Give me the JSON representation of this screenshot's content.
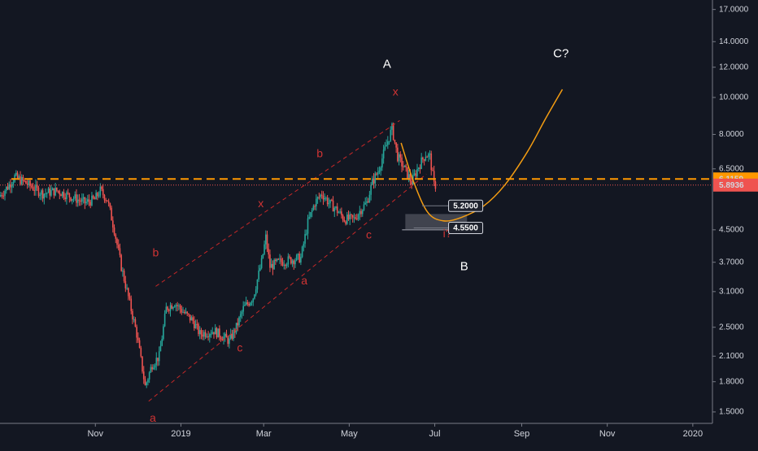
{
  "chart_data": {
    "type": "candlestick",
    "title": "",
    "xlabel": "",
    "ylabel": "",
    "y_scale": "log",
    "ylim": [
      1.4,
      18.0
    ],
    "xlim": [
      "2018-08-25",
      "2020-01-15"
    ],
    "grid": false,
    "colors": {
      "background": "#131722",
      "up": "#26a69a",
      "down": "#ef5350",
      "axis_text": "#d1d4dc",
      "wave_label": "#d03434",
      "channel": "#c62828",
      "projection": "#f39c12",
      "level_dashed": "#ff9800",
      "current_line": "#ef5350",
      "box": "#787b86"
    },
    "y_ticks": [
      {
        "value": 1.5,
        "label": "1.5000"
      },
      {
        "value": 1.8,
        "label": "1.8000"
      },
      {
        "value": 2.1,
        "label": "2.1000"
      },
      {
        "value": 2.5,
        "label": "2.5000"
      },
      {
        "value": 3.1,
        "label": "3.1000"
      },
      {
        "value": 3.7,
        "label": "3.7000"
      },
      {
        "value": 4.5,
        "label": "4.5000"
      },
      {
        "value": 6.5,
        "label": "6.5000"
      },
      {
        "value": 8.0,
        "label": "8.0000"
      },
      {
        "value": 10.0,
        "label": "10.0000"
      },
      {
        "value": 12.0,
        "label": "12.0000"
      },
      {
        "value": 14.0,
        "label": "14.0000"
      },
      {
        "value": 17.0,
        "label": "17.0000"
      }
    ],
    "x_ticks": [
      {
        "date": "2018-11-01",
        "label": "Nov"
      },
      {
        "date": "2019-01-01",
        "label": "2019"
      },
      {
        "date": "2019-03-01",
        "label": "Mar"
      },
      {
        "date": "2019-05-01",
        "label": "May"
      },
      {
        "date": "2019-07-01",
        "label": "Jul"
      },
      {
        "date": "2019-09-01",
        "label": "Sep"
      },
      {
        "date": "2019-11-01",
        "label": "Nov"
      },
      {
        "date": "2020-01-01",
        "label": "2020"
      }
    ],
    "price_path": [
      [
        "2018-08-25",
        5.5
      ],
      [
        "2018-09-01",
        5.9
      ],
      [
        "2018-09-05",
        6.2
      ],
      [
        "2018-09-15",
        5.9
      ],
      [
        "2018-09-25",
        5.6
      ],
      [
        "2018-10-05",
        5.7
      ],
      [
        "2018-10-15",
        5.5
      ],
      [
        "2018-10-25",
        5.3
      ],
      [
        "2018-11-01",
        5.4
      ],
      [
        "2018-11-05",
        5.7
      ],
      [
        "2018-11-10",
        5.4
      ],
      [
        "2018-11-15",
        4.5
      ],
      [
        "2018-11-20",
        3.6
      ],
      [
        "2018-11-25",
        3.0
      ],
      [
        "2018-12-01",
        2.4
      ],
      [
        "2018-12-07",
        1.75
      ],
      [
        "2018-12-12",
        2.0
      ],
      [
        "2018-12-17",
        2.1
      ],
      [
        "2018-12-22",
        2.8
      ],
      [
        "2018-12-28",
        2.9
      ],
      [
        "2019-01-05",
        2.7
      ],
      [
        "2019-01-10",
        2.6
      ],
      [
        "2019-01-15",
        2.4
      ],
      [
        "2019-01-25",
        2.45
      ],
      [
        "2019-02-05",
        2.3
      ],
      [
        "2019-02-10",
        2.5
      ],
      [
        "2019-02-15",
        2.8
      ],
      [
        "2019-02-22",
        3.0
      ],
      [
        "2019-02-28",
        3.7
      ],
      [
        "2019-03-03",
        4.3
      ],
      [
        "2019-03-06",
        3.6
      ],
      [
        "2019-03-12",
        3.7
      ],
      [
        "2019-03-20",
        3.75
      ],
      [
        "2019-03-28",
        3.8
      ],
      [
        "2019-04-02",
        4.7
      ],
      [
        "2019-04-07",
        5.3
      ],
      [
        "2019-04-12",
        5.6
      ],
      [
        "2019-04-17",
        5.3
      ],
      [
        "2019-04-22",
        5.1
      ],
      [
        "2019-04-28",
        4.8
      ],
      [
        "2019-05-05",
        4.8
      ],
      [
        "2019-05-10",
        5.1
      ],
      [
        "2019-05-14",
        5.3
      ],
      [
        "2019-05-18",
        6.0
      ],
      [
        "2019-05-22",
        6.4
      ],
      [
        "2019-05-28",
        7.5
      ],
      [
        "2019-06-01",
        8.3
      ],
      [
        "2019-06-05",
        7.0
      ],
      [
        "2019-06-10",
        6.5
      ],
      [
        "2019-06-15",
        6.0
      ],
      [
        "2019-06-20",
        6.6
      ],
      [
        "2019-06-25",
        7.1
      ],
      [
        "2019-06-28",
        7.0
      ],
      [
        "2019-07-01",
        5.89
      ]
    ],
    "levels": [
      {
        "name": "resistance",
        "value": 6.1159,
        "style": "dashed",
        "color": "#ff9800"
      },
      {
        "name": "current",
        "value": 5.8936,
        "style": "dotted",
        "color": "#ef5350"
      }
    ],
    "price_tags": [
      {
        "value": 6.1159,
        "label": "6.1159",
        "bg": "#ff9800",
        "fg": "#ffffff"
      },
      {
        "value": 5.8936,
        "label": "5.8936",
        "bg": "#ef5350",
        "fg": "#ffffff"
      }
    ],
    "targets": [
      {
        "value": 5.2,
        "label": "5.2000",
        "date_from": "2019-06-22",
        "date_to": "2019-07-12"
      },
      {
        "value": 4.55,
        "label": "4.5500",
        "date_from": "2019-06-16",
        "date_to": "2019-07-12"
      }
    ],
    "box": {
      "date_from": "2019-06-10",
      "date_to": "2019-07-24",
      "top": 4.95,
      "bottom": 4.5
    },
    "channel": {
      "upper": [
        [
          "2018-12-14",
          3.2
        ],
        [
          "2019-06-06",
          8.7
        ]
      ],
      "lower": [
        [
          "2018-12-09",
          1.6
        ],
        [
          "2019-06-25",
          6.3
        ]
      ]
    },
    "projection": [
      [
        "2019-06-07",
        7.6
      ],
      [
        "2019-06-16",
        6.0
      ],
      [
        "2019-06-26",
        5.0
      ],
      [
        "2019-07-07",
        4.75
      ],
      [
        "2019-07-20",
        4.85
      ],
      [
        "2019-08-05",
        5.2
      ],
      [
        "2019-08-20",
        5.9
      ],
      [
        "2019-09-05",
        7.2
      ],
      [
        "2019-09-18",
        8.8
      ],
      [
        "2019-09-30",
        10.5
      ]
    ],
    "wave_labels": [
      {
        "text": "a",
        "date": "2018-12-12",
        "value": 1.44,
        "color": "#d03434",
        "size": "small"
      },
      {
        "text": "b",
        "date": "2018-12-14",
        "value": 3.9,
        "color": "#d03434",
        "size": "small"
      },
      {
        "text": "c",
        "date": "2019-02-12",
        "value": 2.2,
        "color": "#d03434",
        "size": "small"
      },
      {
        "text": "x",
        "date": "2019-02-27",
        "value": 5.25,
        "color": "#d03434",
        "size": "small"
      },
      {
        "text": "a",
        "date": "2019-03-30",
        "value": 3.3,
        "color": "#d03434",
        "size": "small"
      },
      {
        "text": "b",
        "date": "2019-04-10",
        "value": 7.1,
        "color": "#d03434",
        "size": "small"
      },
      {
        "text": "c",
        "date": "2019-05-15",
        "value": 4.35,
        "color": "#d03434",
        "size": "small"
      },
      {
        "text": "x",
        "date": "2019-06-03",
        "value": 10.3,
        "color": "#d03434",
        "size": "small"
      },
      {
        "text": "i?",
        "date": "2019-07-10",
        "value": 4.38,
        "color": "#d03434",
        "size": "small"
      },
      {
        "text": "A",
        "date": "2019-05-28",
        "value": 12.2,
        "color": "#ffffff",
        "size": "big"
      },
      {
        "text": "B",
        "date": "2019-07-22",
        "value": 3.6,
        "color": "#ffffff",
        "size": "big"
      },
      {
        "text": "C?",
        "date": "2019-09-29",
        "value": 13.0,
        "color": "#ffffff",
        "size": "big"
      }
    ]
  }
}
